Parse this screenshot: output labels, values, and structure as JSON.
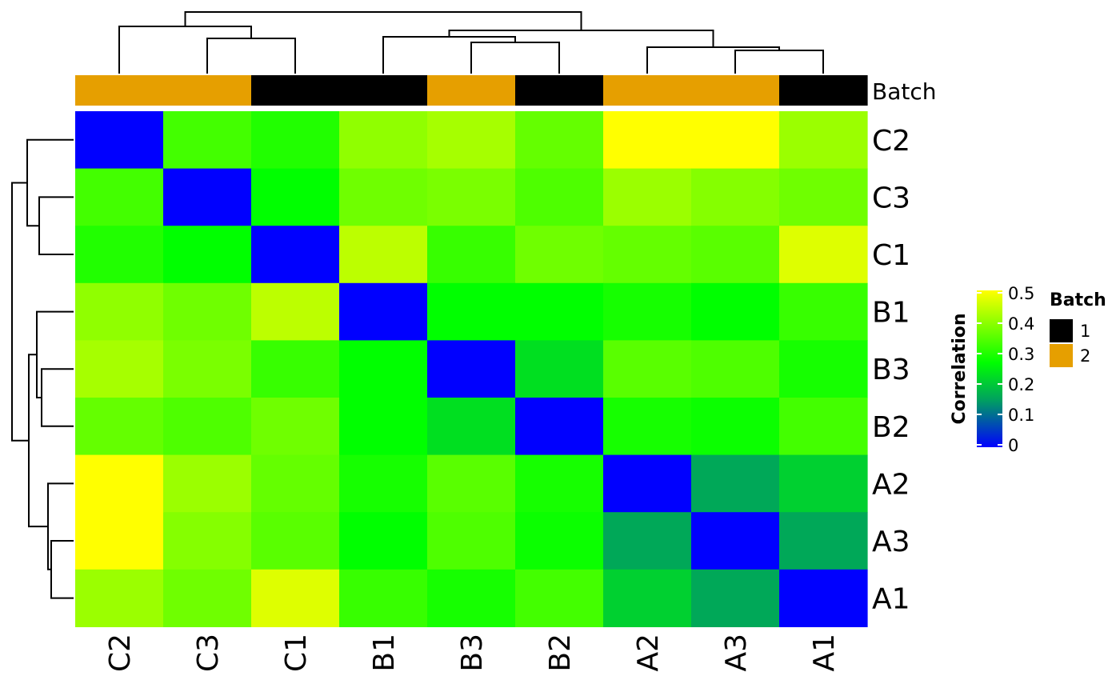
{
  "chart_data": {
    "type": "heatmap",
    "title": "",
    "rows": [
      "C2",
      "C3",
      "C1",
      "B1",
      "B3",
      "B2",
      "A2",
      "A3",
      "A1"
    ],
    "columns": [
      "C2",
      "C3",
      "C1",
      "B1",
      "B3",
      "B2",
      "A2",
      "A3",
      "A1"
    ],
    "values": [
      [
        0.0,
        0.33,
        0.3,
        0.4,
        0.42,
        0.36,
        0.5,
        0.5,
        0.41
      ],
      [
        0.33,
        0.0,
        0.27,
        0.37,
        0.38,
        0.34,
        0.41,
        0.39,
        0.37
      ],
      [
        0.3,
        0.27,
        0.0,
        0.44,
        0.32,
        0.37,
        0.36,
        0.35,
        0.47
      ],
      [
        0.4,
        0.37,
        0.44,
        0.0,
        0.27,
        0.27,
        0.29,
        0.27,
        0.32
      ],
      [
        0.42,
        0.38,
        0.32,
        0.27,
        0.0,
        0.23,
        0.35,
        0.34,
        0.29
      ],
      [
        0.36,
        0.34,
        0.37,
        0.27,
        0.23,
        0.0,
        0.29,
        0.28,
        0.33
      ],
      [
        0.5,
        0.41,
        0.36,
        0.29,
        0.35,
        0.29,
        0.0,
        0.16,
        0.21
      ],
      [
        0.5,
        0.39,
        0.35,
        0.27,
        0.34,
        0.28,
        0.16,
        0.0,
        0.16
      ],
      [
        0.41,
        0.37,
        0.47,
        0.32,
        0.29,
        0.33,
        0.21,
        0.16,
        0.0
      ]
    ],
    "annotation": {
      "name": "Batch",
      "values": [
        "2",
        "2",
        "1",
        "1",
        "2",
        "1",
        "2",
        "2",
        "1"
      ],
      "colors": {
        "1": "#000000",
        "2": "#E69F00"
      }
    },
    "color_scale": {
      "label": "Correlation",
      "min": 0,
      "max": 0.5,
      "ticks": [
        "0",
        "0.1",
        "0.2",
        "0.3",
        "0.4",
        "0.5"
      ],
      "tick_values": [
        0,
        0.1,
        0.2,
        0.3,
        0.4,
        0.5
      ],
      "stops": [
        {
          "value": 0.0,
          "color": "#0000FF"
        },
        {
          "value": 0.15,
          "color": "#00A060"
        },
        {
          "value": 0.27,
          "color": "#00FF00"
        },
        {
          "value": 0.5,
          "color": "#FFFF00"
        }
      ]
    },
    "legend": {
      "title": "Batch",
      "entries": [
        {
          "label": "1",
          "color": "#000000"
        },
        {
          "label": "2",
          "color": "#E69F00"
        }
      ],
      "placement": "right"
    }
  }
}
